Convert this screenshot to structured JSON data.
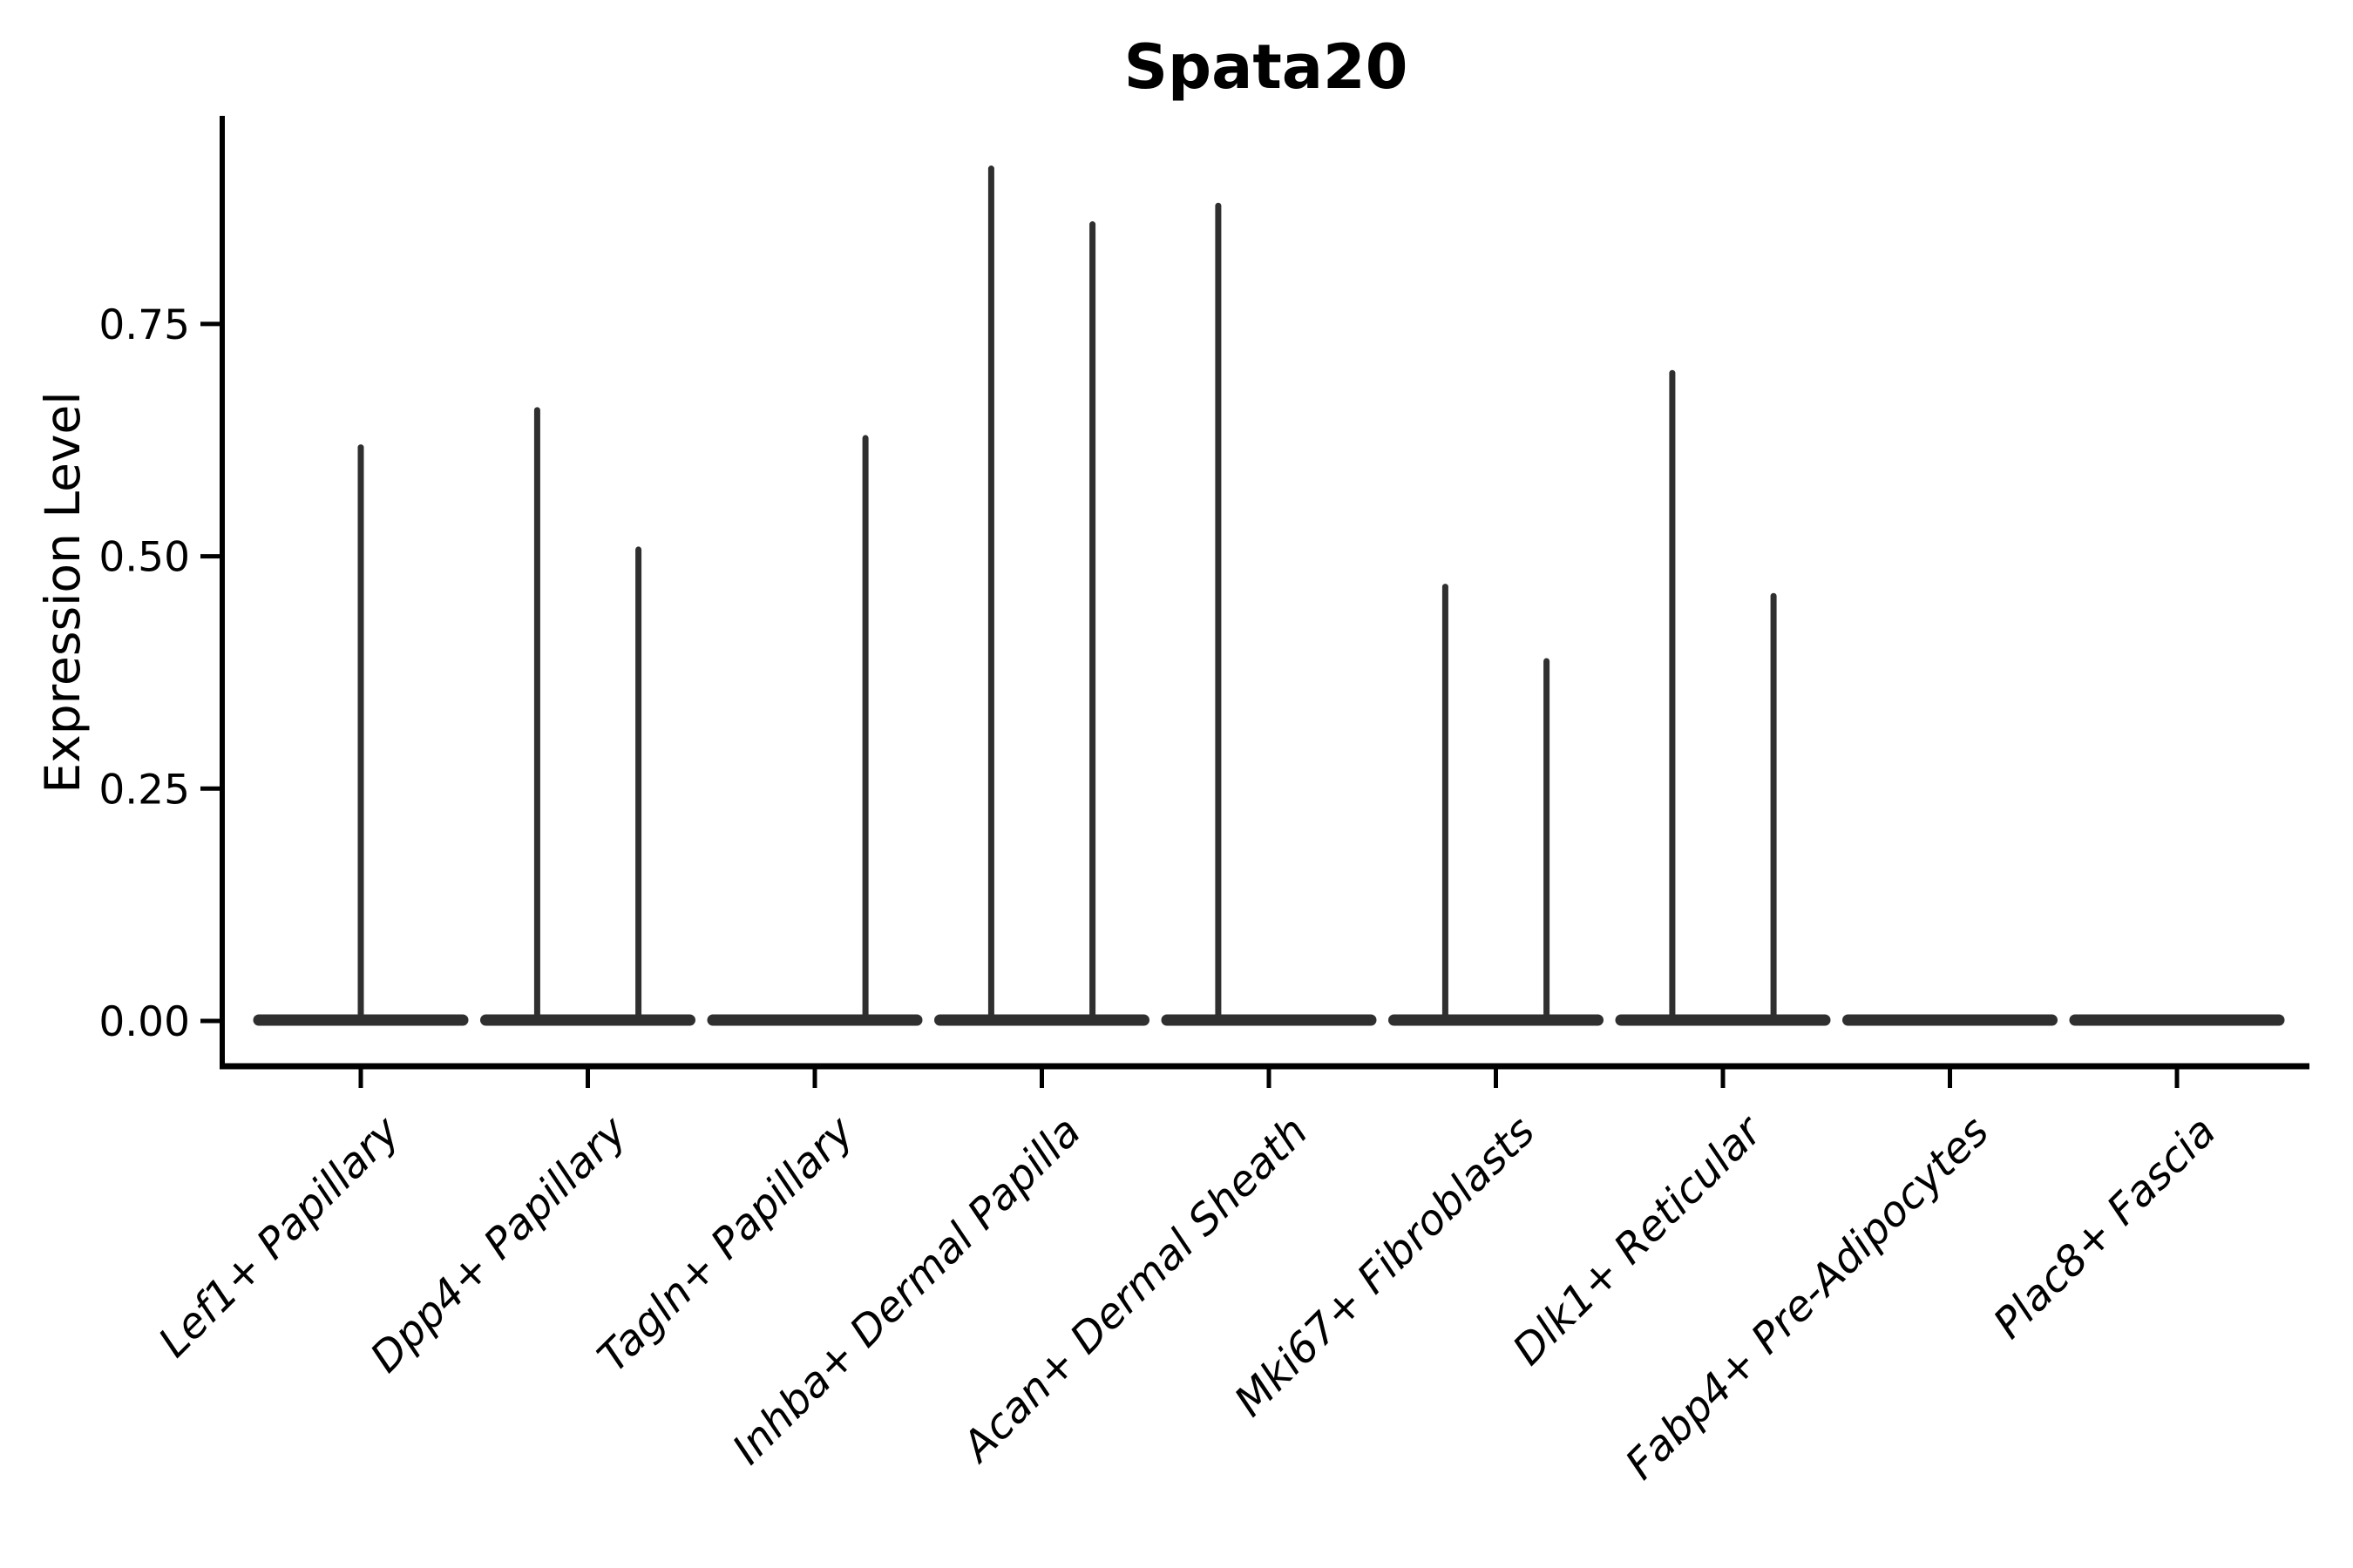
{
  "figure": {
    "background": "#ffffff"
  },
  "chart_data": {
    "type": "violin",
    "title": "Spata20",
    "ylabel": "Expression Level",
    "xlabel": "",
    "grid": false,
    "legend": false,
    "axis_color": "#000000",
    "violin_color": "#2f2f2f",
    "ytick_labels": [
      "0.00",
      "0.25",
      "0.50",
      "0.75"
    ],
    "ytick_values": [
      0,
      0.25,
      0.5,
      0.75
    ],
    "ylim": [
      -0.049,
      0.974
    ],
    "categories": [
      "Lef1+ Papillary",
      "Dpp4+ Papillary",
      "Tagln+ Papillary",
      "Inhba+ Dermal Papilla",
      "Acan+ Dermal Sheath",
      "Mki67+ Fibroblasts",
      "Dlk1+ Reticular",
      "Fabp4+ Pre-Adipocytes",
      "Plac8+ Fascia"
    ],
    "violins": [
      {
        "category": "Lef1+ Papillary",
        "baseline": 0,
        "spikes": [
          {
            "offset": 0,
            "value": 0.62
          }
        ]
      },
      {
        "category": "Dpp4+ Papillary",
        "baseline": 0,
        "spikes": [
          {
            "offset": -0.223,
            "value": 0.66
          },
          {
            "offset": 0.223,
            "value": 0.51
          }
        ]
      },
      {
        "category": "Tagln+ Papillary",
        "baseline": 0,
        "spikes": [
          {
            "offset": 0.223,
            "value": 0.63
          }
        ]
      },
      {
        "category": "Inhba+ Dermal Papilla",
        "baseline": 0,
        "spikes": [
          {
            "offset": -0.223,
            "value": 0.92
          },
          {
            "offset": 0.223,
            "value": 0.86
          }
        ]
      },
      {
        "category": "Acan+ Dermal Sheath",
        "baseline": 0,
        "spikes": [
          {
            "offset": -0.223,
            "value": 0.88
          }
        ]
      },
      {
        "category": "Mki67+ Fibroblasts",
        "baseline": 0,
        "spikes": [
          {
            "offset": -0.223,
            "value": 0.47
          },
          {
            "offset": 0.223,
            "value": 0.39
          }
        ]
      },
      {
        "category": "Dlk1+ Reticular",
        "baseline": 0,
        "spikes": [
          {
            "offset": -0.223,
            "value": 0.7
          },
          {
            "offset": 0.223,
            "value": 0.46
          }
        ]
      },
      {
        "category": "Fabp4+ Pre-Adipocytes",
        "baseline": 0,
        "spikes": []
      },
      {
        "category": "Plac8+ Fascia",
        "baseline": 0,
        "spikes": []
      }
    ]
  }
}
